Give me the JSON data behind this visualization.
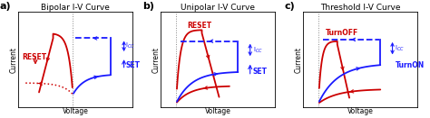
{
  "titles": [
    "Bipolar I-V Curve",
    "Unipolar I-V Curve",
    "Threshold I-V Curve"
  ],
  "panel_labels": [
    "a)",
    "b)",
    "c)"
  ],
  "xlabel": "Voltage",
  "ylabel": "Current",
  "red_color": "#cc0000",
  "blue_color": "#1a1aff",
  "gray_color": "#888888",
  "icc_label": "I$_{CC}$",
  "set_label": "SET",
  "reset_label": "RESET",
  "turnon_label": "TurnON",
  "turnoff_label": "TurnOFF",
  "title_fontsize": 6.5,
  "label_fontsize": 5.5,
  "annot_fontsize": 5.5,
  "panel_label_fontsize": 8
}
